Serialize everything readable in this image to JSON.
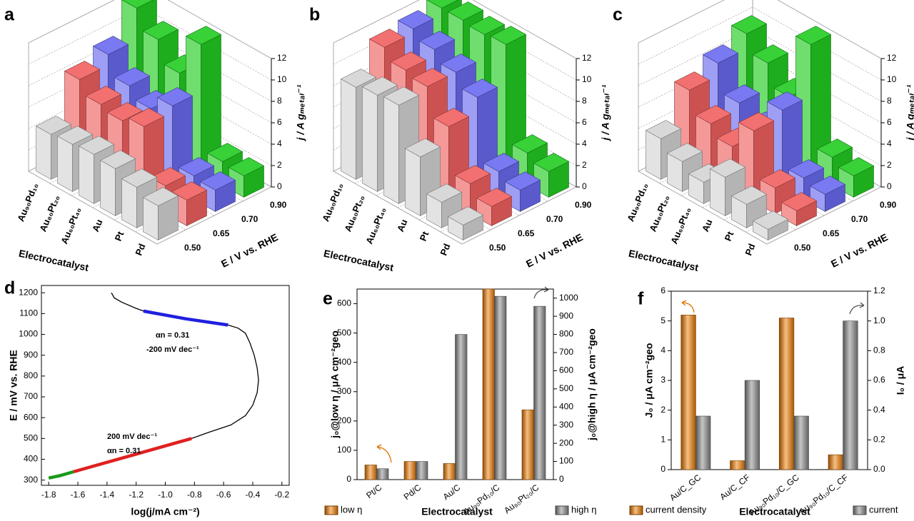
{
  "chart_data": [
    {
      "type": "bar3d",
      "label": "a",
      "categories": [
        "Au₉₀Pd₁₀",
        "Au₈₀Pt₂₀",
        "Au₆₀Pt₄₀",
        "Au",
        "Pt",
        "Pd"
      ],
      "xlabel": "Electrocatalyst",
      "depth_label": "E / V vs. RHE",
      "zlabel": "j / A gₘₑₜₐₗ⁻¹",
      "zlim": [
        0,
        12
      ],
      "zticks": [
        0,
        2,
        4,
        6,
        8,
        10,
        12
      ],
      "series": [
        {
          "name": "0.50",
          "color": "#d4d4d4",
          "values": [
            4.2,
            4.4,
            4.6,
            4.4,
            3.8,
            3.2
          ]
        },
        {
          "name": "0.65",
          "color": "#f06060",
          "values": [
            8.0,
            6.8,
            6.4,
            7.0,
            2.6,
            2.4
          ]
        },
        {
          "name": "0.70",
          "color": "#6a6af0",
          "values": [
            9.0,
            7.2,
            6.2,
            7.6,
            2.2,
            2.0
          ]
        },
        {
          "name": "0.90",
          "color": "#22cc22",
          "values": [
            12.0,
            10.2,
            8.2,
            12.0,
            2.2,
            2.0
          ]
        }
      ]
    },
    {
      "type": "bar3d",
      "label": "b",
      "categories": [
        "Au₉₀Pd₁₀",
        "Au₈₀Pt₂₀",
        "Au₆₀Pt₄₀",
        "Au",
        "Pt",
        "Pd"
      ],
      "xlabel": "Electrocatalyst",
      "depth_label": "E / V vs. RHE",
      "zlabel": "j / A gₘₑₜₐₗ⁻¹",
      "zlim": [
        0,
        12
      ],
      "zticks": [
        0,
        2,
        4,
        6,
        8,
        10,
        12
      ],
      "series": [
        {
          "name": "0.50",
          "color": "#d4d4d4",
          "values": [
            8.6,
            9.0,
            9.2,
            5.5,
            2.4,
            1.4
          ]
        },
        {
          "name": "0.65",
          "color": "#f06060",
          "values": [
            11.0,
            10.0,
            9.6,
            7.0,
            2.8,
            1.8
          ]
        },
        {
          "name": "0.70",
          "color": "#6a6af0",
          "values": [
            11.4,
            10.6,
            9.6,
            8.4,
            2.6,
            2.0
          ]
        },
        {
          "name": "0.90",
          "color": "#22cc22",
          "values": [
            12.0,
            12.0,
            11.8,
            12.0,
            3.0,
            2.4
          ]
        }
      ]
    },
    {
      "type": "bar3d",
      "label": "c",
      "categories": [
        "Au₉₀Pd₁₀",
        "Au₈₀Pt₂₀",
        "Au₆₀Pt₄₀",
        "Au",
        "Pt",
        "Pd"
      ],
      "xlabel": "Electrocatalyst",
      "depth_label": "E / V vs. RHE",
      "zlabel": "j / A gₘₑₜₐₗ⁻¹",
      "zlim": [
        0,
        12
      ],
      "zticks": [
        0,
        2,
        4,
        6,
        8,
        10,
        12
      ],
      "series": [
        {
          "name": "0.50",
          "color": "#d4d4d4",
          "values": [
            3.8,
            2.8,
            2.0,
            3.6,
            2.2,
            1.0
          ]
        },
        {
          "name": "0.65",
          "color": "#f06060",
          "values": [
            7.0,
            5.0,
            4.0,
            6.6,
            2.4,
            1.4
          ]
        },
        {
          "name": "0.70",
          "color": "#6a6af0",
          "values": [
            8.2,
            5.6,
            4.2,
            7.2,
            2.0,
            1.6
          ]
        },
        {
          "name": "0.90",
          "color": "#22cc22",
          "values": [
            9.6,
            8.0,
            6.0,
            12.0,
            2.6,
            2.0
          ]
        }
      ]
    },
    {
      "type": "line",
      "label": "d",
      "xlabel": "log(j/mA cm⁻²)",
      "ylabel": "E / mV vs. RHE",
      "xlim": [
        -1.85,
        -0.15
      ],
      "xticks": [
        -1.8,
        -1.6,
        -1.4,
        -1.2,
        {
          "value": -1,
          "label": "-1.0"
        },
        -0.8,
        -0.6,
        -0.4,
        -0.2
      ],
      "ylim": [
        275,
        1235
      ],
      "yticks": [
        300,
        400,
        500,
        600,
        700,
        800,
        900,
        1000,
        1100,
        1200
      ],
      "series": [
        {
          "color": "#000000",
          "x": [
            -1.37,
            -1.35,
            -1.3,
            -1.2,
            -1.1,
            -0.9,
            -0.7,
            -0.57,
            -0.5,
            -0.45,
            -0.42,
            -0.39,
            -0.37,
            -0.36,
            -0.37,
            -0.4,
            -0.45,
            -0.55,
            -0.7,
            -0.82,
            -1.0,
            -1.2,
            -1.4,
            -1.63,
            -1.75,
            -1.8
          ],
          "y": [
            1200,
            1175,
            1155,
            1125,
            1100,
            1080,
            1060,
            1045,
            1030,
            1005,
            960,
            900,
            840,
            780,
            720,
            660,
            610,
            565,
            530,
            500,
            465,
            425,
            385,
            340,
            318,
            310
          ]
        },
        {
          "color": "#2020e0",
          "x": [
            -1.15,
            -0.86,
            -0.57
          ],
          "y": [
            1112,
            1075,
            1045
          ]
        },
        {
          "color": "#e02020",
          "x": [
            -1.63,
            -1.2,
            -0.82
          ],
          "y": [
            340,
            425,
            500
          ]
        },
        {
          "color": "#1a9a1a",
          "x": [
            -1.8,
            -1.72,
            -1.63
          ],
          "y": [
            310,
            322,
            340
          ]
        }
      ],
      "annotations": [
        {
          "text": "αn = 0.31",
          "color": "#2020e0"
        },
        {
          "text": "-200 mV dec⁻¹",
          "color": "#2020e0"
        },
        {
          "text": "200 mV dec⁻¹",
          "color": "#e02020"
        },
        {
          "text": "αn = 0.31",
          "color": "#e02020"
        }
      ]
    },
    {
      "type": "bar",
      "label": "e",
      "categories": [
        "Pt/C",
        "Pd/C",
        "Au/C",
        "Au₉₀Pd₁₀/C",
        "Au₈₀Pt₂₀/C"
      ],
      "xlabel": "Electrocatalyst",
      "ylabel": "j₀@low η / μA cm⁻²geo",
      "y2label": "j₀@high η / μA cm⁻²geo",
      "ylim": [
        0,
        650
      ],
      "yticks": [
        0,
        100,
        200,
        300,
        400,
        500,
        600
      ],
      "y2lim": [
        0,
        1050
      ],
      "y2ticks": [
        0,
        100,
        200,
        300,
        400,
        500,
        600,
        700,
        800,
        900,
        1000
      ],
      "series": [
        {
          "name": "low η",
          "color": "#f07c00",
          "values": [
            50,
            62,
            55,
            650,
            238
          ]
        },
        {
          "name": "high η",
          "color": "#8a8a8a",
          "axis": "y2",
          "values": [
            60,
            100,
            800,
            1010,
            955
          ]
        }
      ]
    },
    {
      "type": "bar",
      "label": "f",
      "categories": [
        "Au/C_GC",
        "Au/C_CF",
        "Au₉₀Pd₁₀/C_GC",
        "Au₉₀Pd₁₀/C_CF"
      ],
      "xlabel": "Electrocatalyst",
      "ylabel": "J₀ / μA cm⁻²geo",
      "y2label": "I₀ / μA",
      "ylim": [
        0,
        6
      ],
      "yticks": [
        0,
        1,
        2,
        3,
        4,
        5,
        6
      ],
      "y2lim": [
        0,
        1.2
      ],
      "y2ticks": [
        {
          "value": 0,
          "label": "0.0"
        },
        0.2,
        0.4,
        0.6,
        0.8,
        {
          "value": 1,
          "label": "1.0"
        },
        1.2
      ],
      "series": [
        {
          "name": "current density",
          "color": "#f07c00",
          "values": [
            5.2,
            0.3,
            5.1,
            0.5
          ]
        },
        {
          "name": "current",
          "color": "#8a8a8a",
          "axis": "y2",
          "values": [
            0.36,
            0.6,
            0.36,
            1.0
          ]
        }
      ]
    }
  ]
}
